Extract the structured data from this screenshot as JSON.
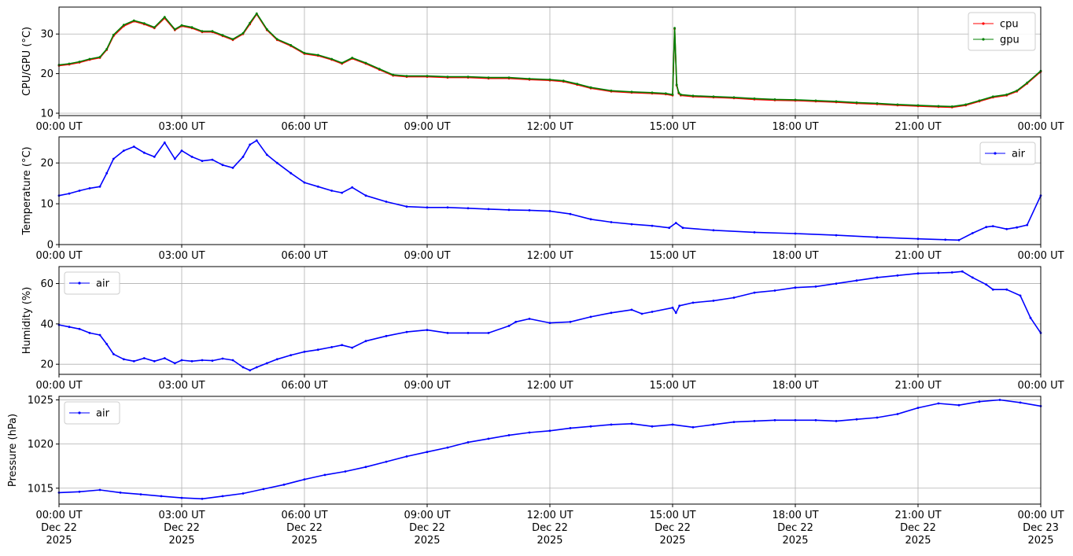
{
  "chart_data": [
    {
      "type": "line",
      "ylabel": "CPU/GPU (°C)",
      "xlim": [
        "2025-12-22T00:00",
        "2025-12-23T00:00"
      ],
      "ylim": [
        9.4,
        36.8
      ],
      "yticks": [
        10,
        20,
        30
      ],
      "xtick_labels": [
        "00:00 UT",
        "03:00 UT",
        "06:00 UT",
        "09:00 UT",
        "12:00 UT",
        "15:00 UT",
        "18:00 UT",
        "21:00 UT",
        "00:00 UT"
      ],
      "grid": true,
      "legend_position": "top-right",
      "series": [
        {
          "name": "cpu",
          "color": "#ff0000",
          "x": [
            "00:00",
            "00:15",
            "00:30",
            "00:45",
            "01:00",
            "01:10",
            "01:20",
            "01:35",
            "01:50",
            "02:05",
            "02:20",
            "02:35",
            "02:50",
            "03:00",
            "03:15",
            "03:30",
            "03:45",
            "04:00",
            "04:15",
            "04:30",
            "04:40",
            "04:50",
            "05:05",
            "05:20",
            "05:40",
            "06:00",
            "06:20",
            "06:40",
            "06:55",
            "07:10",
            "07:30",
            "07:50",
            "08:10",
            "08:30",
            "09:00",
            "09:30",
            "10:00",
            "10:30",
            "11:00",
            "11:30",
            "12:00",
            "12:20",
            "12:40",
            "13:00",
            "13:30",
            "14:00",
            "14:30",
            "14:50",
            "15:00",
            "15:03",
            "15:06",
            "15:09",
            "15:12",
            "15:30",
            "16:00",
            "16:30",
            "17:00",
            "17:30",
            "18:00",
            "18:30",
            "19:00",
            "19:30",
            "20:00",
            "20:30",
            "21:00",
            "21:30",
            "21:50",
            "22:10",
            "22:30",
            "22:50",
            "23:10",
            "23:25",
            "23:40",
            "24:00"
          ],
          "values": [
            22,
            22.3,
            22.8,
            23.5,
            24,
            26,
            29.5,
            32,
            33.2,
            32.5,
            31.5,
            34,
            31,
            32,
            31.5,
            30.5,
            30.5,
            29.5,
            28.5,
            30,
            32.5,
            35,
            31,
            28.5,
            27,
            25,
            24.5,
            23.5,
            22.5,
            23.8,
            22.5,
            21,
            19.5,
            19.2,
            19.2,
            19,
            19,
            18.8,
            18.8,
            18.5,
            18.3,
            18,
            17.2,
            16.3,
            15.5,
            15.2,
            15,
            14.8,
            14.5,
            31.3,
            17,
            15,
            14.5,
            14.2,
            14,
            13.8,
            13.5,
            13.3,
            13.2,
            13,
            12.8,
            12.5,
            12.3,
            12,
            11.8,
            11.6,
            11.5,
            12,
            13,
            14,
            14.5,
            15.5,
            17.5,
            20.5
          ]
        },
        {
          "name": "gpu",
          "color": "#008000",
          "x": [
            "00:00",
            "00:15",
            "00:30",
            "00:45",
            "01:00",
            "01:10",
            "01:20",
            "01:35",
            "01:50",
            "02:05",
            "02:20",
            "02:35",
            "02:50",
            "03:00",
            "03:15",
            "03:30",
            "03:45",
            "04:00",
            "04:15",
            "04:30",
            "04:40",
            "04:50",
            "05:05",
            "05:20",
            "05:40",
            "06:00",
            "06:20",
            "06:40",
            "06:55",
            "07:10",
            "07:30",
            "07:50",
            "08:10",
            "08:30",
            "09:00",
            "09:30",
            "10:00",
            "10:30",
            "11:00",
            "11:30",
            "12:00",
            "12:20",
            "12:40",
            "13:00",
            "13:30",
            "14:00",
            "14:30",
            "14:50",
            "15:00",
            "15:03",
            "15:06",
            "15:09",
            "15:12",
            "15:30",
            "16:00",
            "16:30",
            "17:00",
            "17:30",
            "18:00",
            "18:30",
            "19:00",
            "19:30",
            "20:00",
            "20:30",
            "21:00",
            "21:30",
            "21:50",
            "22:10",
            "22:30",
            "22:50",
            "23:10",
            "23:25",
            "23:40",
            "24:00"
          ],
          "values": [
            22.2,
            22.5,
            23,
            23.7,
            24.2,
            26.2,
            29.8,
            32.3,
            33.4,
            32.7,
            31.7,
            34.3,
            31.2,
            32.2,
            31.7,
            30.7,
            30.7,
            29.7,
            28.7,
            30.2,
            32.8,
            35.2,
            31.2,
            28.7,
            27.2,
            25.2,
            24.7,
            23.7,
            22.7,
            24,
            22.7,
            21.2,
            19.7,
            19.4,
            19.4,
            19.2,
            19.2,
            19,
            19,
            18.7,
            18.5,
            18.2,
            17.4,
            16.5,
            15.7,
            15.4,
            15.2,
            15,
            14.7,
            31.5,
            17.2,
            15.2,
            14.7,
            14.4,
            14.2,
            14,
            13.7,
            13.5,
            13.4,
            13.2,
            13,
            12.7,
            12.5,
            12.2,
            12,
            11.8,
            11.7,
            12.2,
            13.2,
            14.2,
            14.7,
            15.7,
            17.7,
            20.7
          ]
        }
      ]
    },
    {
      "type": "line",
      "ylabel": "Temperature (°C)",
      "xlim": [
        "2025-12-22T00:00",
        "2025-12-23T00:00"
      ],
      "ylim": [
        0,
        26.4
      ],
      "yticks": [
        0,
        10,
        20
      ],
      "xtick_labels": [
        "00:00 UT",
        "03:00 UT",
        "06:00 UT",
        "09:00 UT",
        "12:00 UT",
        "15:00 UT",
        "18:00 UT",
        "21:00 UT",
        "00:00 UT"
      ],
      "grid": true,
      "legend_position": "top-right",
      "series": [
        {
          "name": "air",
          "color": "#0000ff",
          "x": [
            "00:00",
            "00:15",
            "00:30",
            "00:45",
            "01:00",
            "01:10",
            "01:20",
            "01:35",
            "01:50",
            "02:05",
            "02:20",
            "02:35",
            "02:50",
            "03:00",
            "03:15",
            "03:30",
            "03:45",
            "04:00",
            "04:15",
            "04:30",
            "04:40",
            "04:50",
            "05:05",
            "05:20",
            "05:40",
            "06:00",
            "06:20",
            "06:40",
            "06:55",
            "07:10",
            "07:30",
            "08:00",
            "08:30",
            "09:00",
            "09:30",
            "10:00",
            "10:30",
            "11:00",
            "11:30",
            "12:00",
            "12:30",
            "13:00",
            "13:30",
            "14:00",
            "14:30",
            "14:55",
            "15:05",
            "15:15",
            "16:00",
            "17:00",
            "18:00",
            "19:00",
            "20:00",
            "21:00",
            "21:40",
            "22:00",
            "22:20",
            "22:40",
            "22:50",
            "23:10",
            "23:25",
            "23:40",
            "24:00"
          ],
          "values": [
            12,
            12.5,
            13.2,
            13.8,
            14.2,
            17.5,
            21,
            23,
            24,
            22.5,
            21.5,
            25,
            21,
            23,
            21.5,
            20.5,
            20.8,
            19.5,
            18.8,
            21.5,
            24.5,
            25.5,
            22,
            20,
            17.5,
            15.2,
            14.2,
            13.2,
            12.7,
            14,
            12,
            10.5,
            9.3,
            9.1,
            9.1,
            8.9,
            8.7,
            8.5,
            8.4,
            8.2,
            7.5,
            6.2,
            5.5,
            5,
            4.6,
            4.1,
            5.3,
            4.1,
            3.5,
            3,
            2.7,
            2.3,
            1.8,
            1.4,
            1.2,
            1.1,
            2.8,
            4.3,
            4.5,
            3.8,
            4.2,
            4.8,
            12
          ]
        }
      ]
    },
    {
      "type": "line",
      "ylabel": "Humidity (%)",
      "xlim": [
        "2025-12-22T00:00",
        "2025-12-23T00:00"
      ],
      "ylim": [
        15,
        68.4
      ],
      "yticks": [
        20,
        40,
        60
      ],
      "xtick_labels": [
        "00:00 UT",
        "03:00 UT",
        "06:00 UT",
        "09:00 UT",
        "12:00 UT",
        "15:00 UT",
        "18:00 UT",
        "21:00 UT",
        "00:00 UT"
      ],
      "grid": true,
      "legend_position": "top-left",
      "series": [
        {
          "name": "air",
          "color": "#0000ff",
          "x": [
            "00:00",
            "00:15",
            "00:30",
            "00:45",
            "01:00",
            "01:10",
            "01:20",
            "01:35",
            "01:50",
            "02:05",
            "02:20",
            "02:35",
            "02:50",
            "03:00",
            "03:15",
            "03:30",
            "03:45",
            "04:00",
            "04:15",
            "04:30",
            "04:40",
            "04:50",
            "05:05",
            "05:20",
            "05:40",
            "06:00",
            "06:20",
            "06:40",
            "06:55",
            "07:10",
            "07:30",
            "08:00",
            "08:30",
            "09:00",
            "09:30",
            "10:00",
            "10:30",
            "11:00",
            "11:10",
            "11:30",
            "12:00",
            "12:30",
            "13:00",
            "13:30",
            "14:00",
            "14:15",
            "14:30",
            "15:00",
            "15:05",
            "15:10",
            "15:30",
            "16:00",
            "16:30",
            "17:00",
            "17:30",
            "18:00",
            "18:30",
            "19:00",
            "19:30",
            "20:00",
            "20:30",
            "21:00",
            "21:30",
            "21:50",
            "22:05",
            "22:20",
            "22:40",
            "22:50",
            "23:10",
            "23:30",
            "23:45",
            "24:00"
          ],
          "values": [
            39.5,
            38.5,
            37.5,
            35.5,
            34.5,
            30,
            25,
            22.5,
            21.5,
            23,
            21.5,
            23,
            20.5,
            22,
            21.5,
            22,
            21.8,
            22.8,
            22,
            18.5,
            17,
            18.5,
            20.5,
            22.5,
            24.5,
            26.2,
            27.2,
            28.5,
            29.5,
            28.2,
            31.5,
            34,
            36,
            37,
            35.5,
            35.5,
            35.5,
            39,
            41,
            42.5,
            40.5,
            41,
            43.5,
            45.5,
            47,
            45,
            46,
            48,
            45.5,
            49,
            50.5,
            51.5,
            53,
            55.5,
            56.5,
            58,
            58.5,
            60,
            61.5,
            63,
            64,
            65,
            65.3,
            65.5,
            66,
            63,
            59.5,
            57,
            57,
            54,
            43,
            35.5
          ]
        }
      ]
    },
    {
      "type": "line",
      "ylabel": "Pressure (hPa)",
      "xlim": [
        "2025-12-22T00:00",
        "2025-12-23T00:00"
      ],
      "ylim": [
        1013.2,
        1025.4
      ],
      "yticks": [
        1015,
        1020,
        1025
      ],
      "xtick_labels": [
        "00:00 UT\nDec 22\n2025",
        "03:00 UT\nDec 22\n2025",
        "06:00 UT\nDec 22\n2025",
        "09:00 UT\nDec 22\n2025",
        "12:00 UT\nDec 22\n2025",
        "15:00 UT\nDec 22\n2025",
        "18:00 UT\nDec 22\n2025",
        "21:00 UT\nDec 22\n2025",
        "00:00 UT\nDec 23\n2025"
      ],
      "grid": true,
      "legend_position": "top-left",
      "series": [
        {
          "name": "air",
          "color": "#0000ff",
          "x": [
            "00:00",
            "00:30",
            "01:00",
            "01:30",
            "02:00",
            "02:30",
            "03:00",
            "03:30",
            "04:00",
            "04:30",
            "05:00",
            "05:30",
            "06:00",
            "06:30",
            "07:00",
            "07:30",
            "08:00",
            "08:30",
            "09:00",
            "09:30",
            "10:00",
            "10:30",
            "11:00",
            "11:30",
            "12:00",
            "12:30",
            "13:00",
            "13:30",
            "14:00",
            "14:30",
            "15:00",
            "15:30",
            "16:00",
            "16:30",
            "17:00",
            "17:30",
            "18:00",
            "18:30",
            "19:00",
            "19:30",
            "20:00",
            "20:30",
            "21:00",
            "21:30",
            "22:00",
            "22:30",
            "23:00",
            "23:30",
            "24:00"
          ],
          "values": [
            1014.5,
            1014.6,
            1014.8,
            1014.5,
            1014.3,
            1014.1,
            1013.9,
            1013.8,
            1014.1,
            1014.4,
            1014.9,
            1015.4,
            1016,
            1016.5,
            1016.9,
            1017.4,
            1018,
            1018.6,
            1019.1,
            1019.6,
            1020.2,
            1020.6,
            1021,
            1021.3,
            1021.5,
            1021.8,
            1022,
            1022.2,
            1022.3,
            1022,
            1022.2,
            1021.9,
            1022.2,
            1022.5,
            1022.6,
            1022.7,
            1022.7,
            1022.7,
            1022.6,
            1022.8,
            1023,
            1023.4,
            1024.1,
            1024.6,
            1024.4,
            1024.8,
            1025,
            1024.7,
            1024.3
          ]
        }
      ]
    }
  ]
}
